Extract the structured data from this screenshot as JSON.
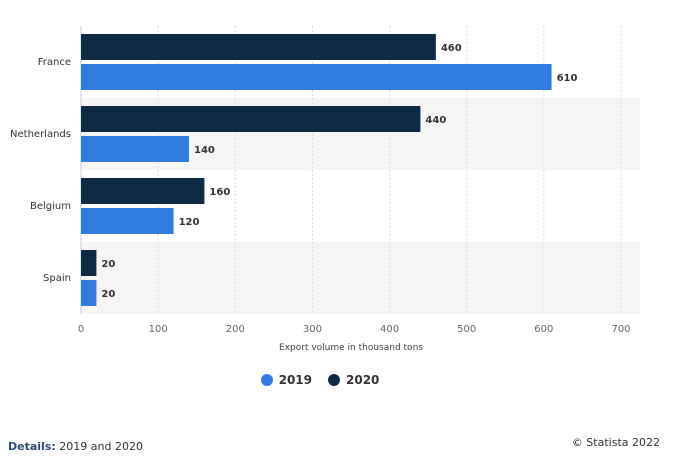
{
  "chart_data": {
    "type": "bar",
    "orientation": "horizontal",
    "categories": [
      "France",
      "Netherlands",
      "Belgium",
      "Spain"
    ],
    "series": [
      {
        "name": "2020",
        "color": "#0f2a44",
        "values": [
          460,
          440,
          160,
          20
        ]
      },
      {
        "name": "2019",
        "color": "#2f7be0",
        "values": [
          610,
          140,
          120,
          20
        ]
      }
    ],
    "xlabel": "Export volume in thousand tons",
    "ylabel": "",
    "xlim": [
      0,
      700
    ],
    "xticks": [
      0,
      100,
      200,
      300,
      400,
      500,
      600,
      700
    ],
    "grid": true,
    "legend_position": "bottom"
  },
  "legend": {
    "items": [
      {
        "label": "2019",
        "color": "#2f7be0"
      },
      {
        "label": "2020",
        "color": "#0f2a44"
      }
    ]
  },
  "footer": {
    "details_label": "Details:",
    "details_value": "2019 and 2020",
    "copyright": "© Statista 2022"
  }
}
